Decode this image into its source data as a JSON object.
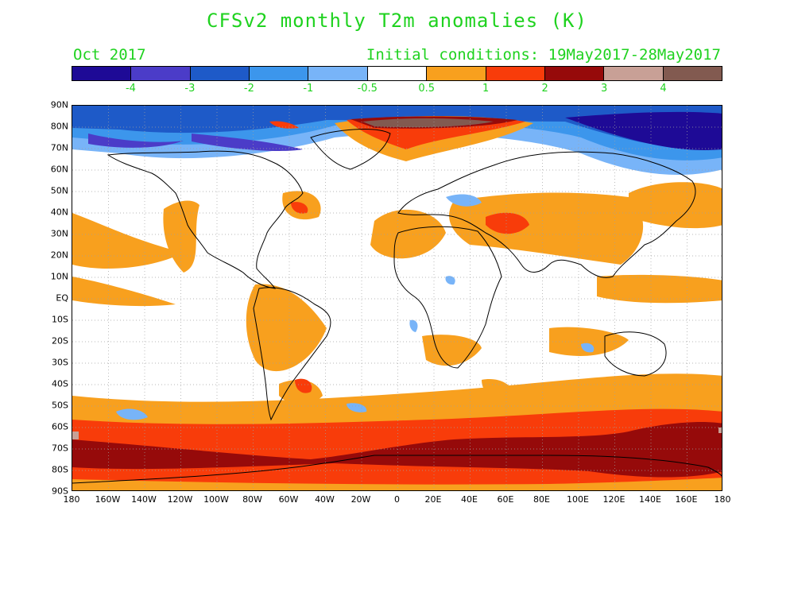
{
  "title": "CFSv2 monthly T2m anomalies (K)",
  "valid_month": "Oct 2017",
  "initial_conditions": "Initial conditions: 19May2017-28May2017",
  "colorbar": {
    "colors": [
      "#1e0a96",
      "#4b3cc8",
      "#1e5ac8",
      "#3c96ec",
      "#78b4f8",
      "#ffffff",
      "#f8a01e",
      "#f83c0a",
      "#960a0a",
      "#c8a096",
      "#825a50"
    ],
    "labels": [
      "-4",
      "-3",
      "-2",
      "-1",
      "-0.5",
      "0.5",
      "1",
      "2",
      "3",
      "4"
    ]
  },
  "axes": {
    "lat_labels": [
      "90N",
      "80N",
      "70N",
      "60N",
      "50N",
      "40N",
      "30N",
      "20N",
      "10N",
      "EQ",
      "10S",
      "20S",
      "30S",
      "40S",
      "50S",
      "60S",
      "70S",
      "80S",
      "90S"
    ],
    "lon_labels": [
      "180",
      "160W",
      "140W",
      "120W",
      "100W",
      "80W",
      "60W",
      "40W",
      "20W",
      "0",
      "20E",
      "40E",
      "60E",
      "80E",
      "100E",
      "120E",
      "140E",
      "160E",
      "180"
    ]
  }
}
